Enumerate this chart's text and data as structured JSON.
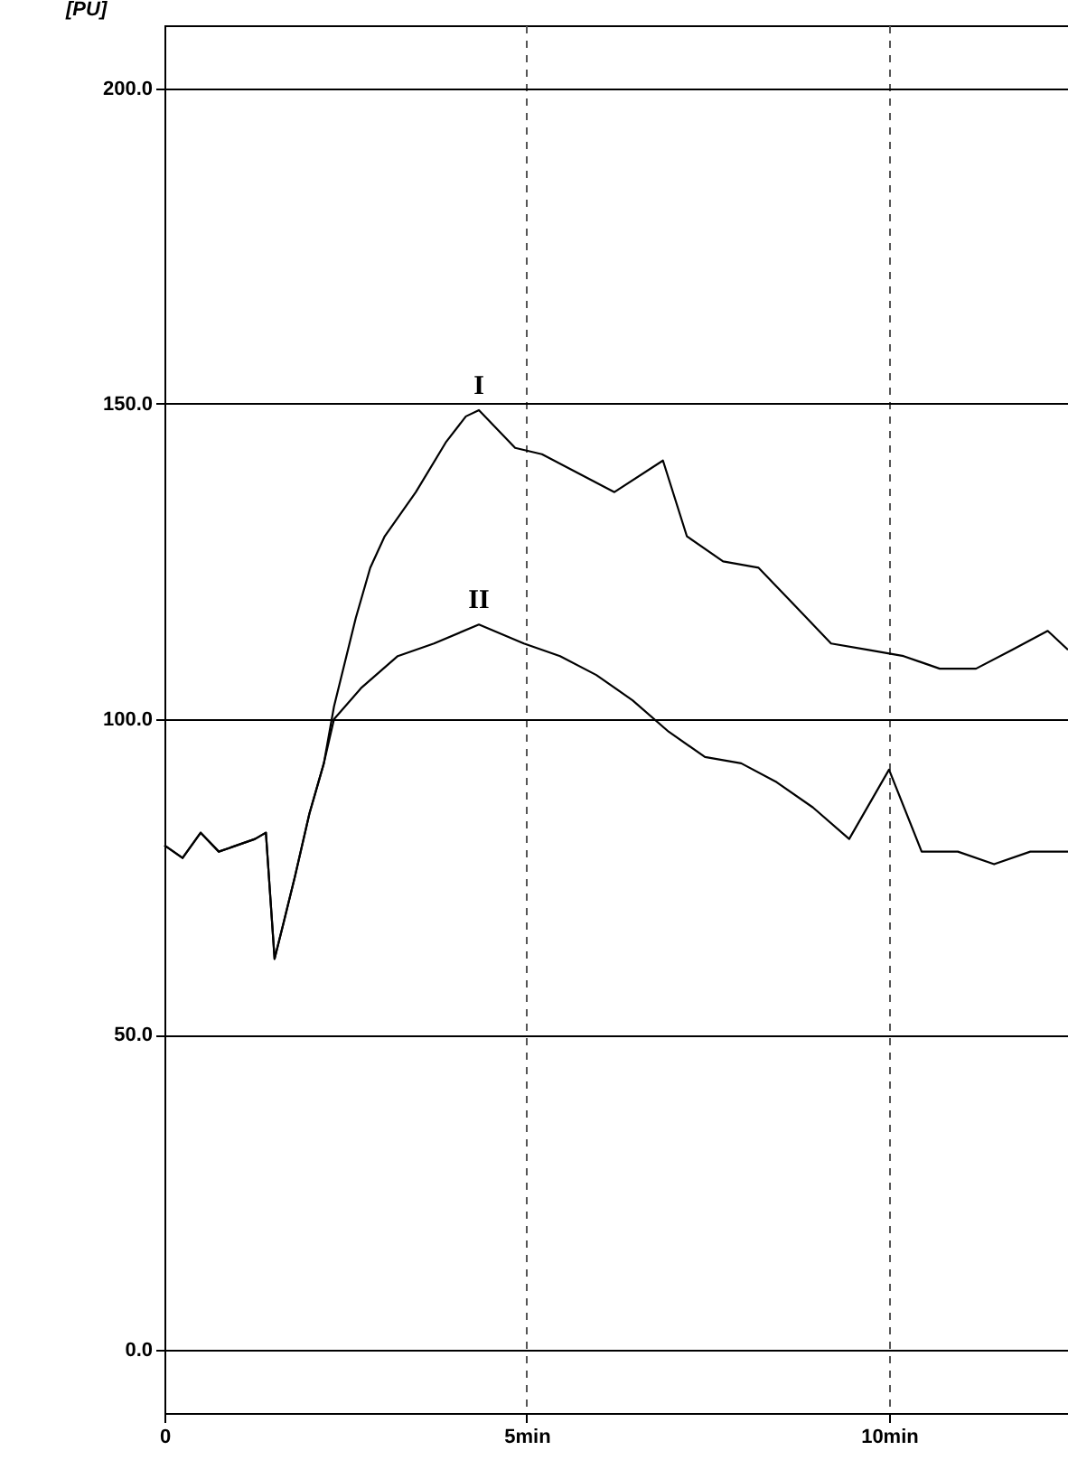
{
  "chart_data": {
    "type": "line",
    "ylabel": "[PU]",
    "xlim": [
      0,
      12.47
    ],
    "ylim": [
      -10,
      210
    ],
    "xticks": [
      {
        "value": 0,
        "label": "0"
      },
      {
        "value": 5,
        "label": "5min"
      },
      {
        "value": 10,
        "label": "10min"
      }
    ],
    "yticks": [
      {
        "value": 0,
        "label": "0.0"
      },
      {
        "value": 50,
        "label": "50.0"
      },
      {
        "value": 100,
        "label": "100.0"
      },
      {
        "value": 150,
        "label": "150.0"
      },
      {
        "value": 200,
        "label": "200.0"
      }
    ],
    "grid": true,
    "marker": "none",
    "line_style": "solid",
    "series": [
      {
        "name": "I",
        "color": "#000000",
        "x": [
          0,
          0.25,
          0.5,
          0.75,
          1.0,
          1.25,
          1.4,
          1.52,
          1.65,
          1.8,
          2.0,
          2.2,
          2.34,
          2.64,
          2.84,
          3.04,
          3.47,
          3.89,
          4.16,
          4.34,
          4.84,
          5.21,
          5.71,
          6.21,
          6.88,
          7.21,
          7.71,
          8.2,
          8.7,
          9.2,
          9.7,
          10.2,
          10.7,
          11.2,
          11.7,
          12.19,
          12.47
        ],
        "values": [
          80,
          78,
          82,
          79,
          80,
          81,
          82,
          62,
          68,
          75,
          85,
          93,
          102,
          116,
          124,
          129,
          136,
          144,
          148,
          149,
          143,
          142,
          139,
          136,
          141,
          129,
          125,
          124,
          118,
          112,
          111,
          110,
          108,
          108,
          111,
          114,
          111
        ]
      },
      {
        "name": "II",
        "color": "#000000",
        "x": [
          0,
          0.25,
          0.5,
          0.75,
          1.0,
          1.25,
          1.4,
          1.52,
          1.65,
          1.8,
          2.0,
          2.2,
          2.34,
          2.72,
          3.22,
          3.72,
          4.34,
          4.96,
          5.46,
          5.96,
          6.46,
          6.96,
          7.46,
          7.96,
          8.45,
          8.95,
          9.45,
          10.0,
          10.45,
          10.95,
          11.45,
          11.95,
          12.47
        ],
        "values": [
          80,
          78,
          82,
          79,
          80,
          81,
          82,
          62,
          68,
          75,
          85,
          93,
          100,
          105,
          110,
          112,
          115,
          112,
          110,
          107,
          103,
          98,
          94,
          93,
          90,
          86,
          81,
          92,
          79,
          79,
          77,
          79,
          79
        ]
      }
    ]
  }
}
